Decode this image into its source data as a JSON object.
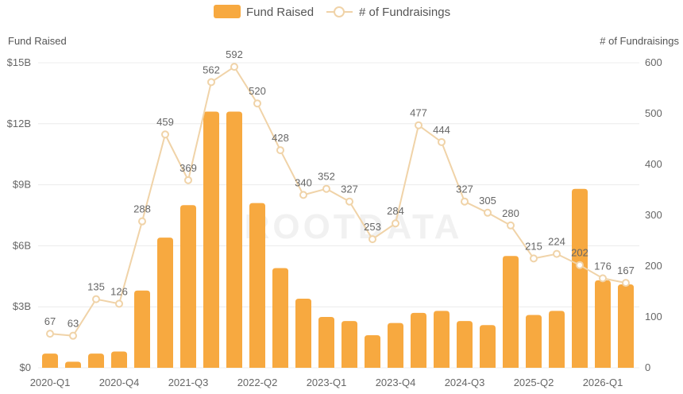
{
  "chart_data": {
    "type": "bar",
    "watermark": "ROOTDATA",
    "legend": [
      "Fund Raised",
      "# of Fundraisings"
    ],
    "left_axis": {
      "title": "Fund Raised",
      "ticks": [
        "$0",
        "$3B",
        "$6B",
        "$9B",
        "$12B",
        "$15B"
      ],
      "ylim": [
        0,
        15
      ]
    },
    "right_axis": {
      "title": "# of Fundraisings",
      "ticks": [
        "0",
        "100",
        "200",
        "300",
        "400",
        "500",
        "600"
      ],
      "ylim": [
        0,
        600
      ]
    },
    "categories": [
      "2020-Q1",
      "2020-Q2",
      "2020-Q3",
      "2020-Q4",
      "2021-Q1",
      "2021-Q2",
      "2021-Q3",
      "2021-Q4",
      "2022-Q1",
      "2022-Q2",
      "2022-Q3",
      "2022-Q4",
      "2023-Q1",
      "2023-Q2",
      "2023-Q3",
      "2023-Q4",
      "2024-Q1",
      "2024-Q2",
      "2024-Q3",
      "2024-Q4",
      "2025-Q1",
      "2025-Q2",
      "2025-Q3",
      "2025-Q4",
      "2026-Q1",
      "2026-Q2"
    ],
    "x_tick_labels": [
      "2020-Q1",
      "2020-Q4",
      "2021-Q3",
      "2022-Q2",
      "2023-Q1",
      "2023-Q4",
      "2024-Q3",
      "2025-Q2",
      "2026-Q1"
    ],
    "series": [
      {
        "name": "Fund Raised",
        "type": "bar",
        "unit": "B USD",
        "values": [
          0.7,
          0.3,
          0.7,
          0.8,
          3.8,
          6.4,
          8.0,
          12.6,
          12.6,
          8.1,
          4.9,
          3.4,
          2.5,
          2.3,
          1.6,
          2.2,
          2.7,
          2.8,
          2.3,
          2.1,
          5.5,
          2.6,
          2.8,
          8.8,
          4.3,
          4.1
        ]
      },
      {
        "name": "# of Fundraisings",
        "type": "line",
        "values": [
          67,
          63,
          135,
          126,
          288,
          459,
          369,
          562,
          592,
          520,
          428,
          340,
          352,
          327,
          253,
          284,
          477,
          444,
          327,
          305,
          280,
          215,
          224,
          202,
          176,
          167
        ]
      }
    ],
    "colors": {
      "bar": "#f7a940",
      "line": "#f0d3a8",
      "marker_fill": "#ffffff",
      "grid": "#ececec"
    },
    "grid": true
  }
}
